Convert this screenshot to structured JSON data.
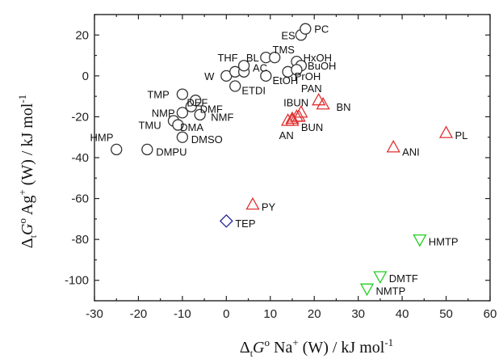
{
  "chart_data": {
    "type": "scatter",
    "title": "",
    "xlabel": {
      "delta": "Δ",
      "sub": "t",
      "G": "G",
      "sup_o": "o",
      "ion": " Na",
      "ion_sup": "+",
      "rest": " (W) / kJ mol",
      "unit_sup": "-1"
    },
    "ylabel": {
      "delta": "Δ",
      "sub": "t",
      "G": "G",
      "sup_o": "o",
      "ion": " Ag",
      "ion_sup": "+",
      "rest": " (W) / kJ mol",
      "unit_sup": "-1"
    },
    "xlim": [
      -30,
      60
    ],
    "ylim": [
      -110,
      30
    ],
    "xticks": [
      -30,
      -20,
      -10,
      0,
      10,
      20,
      30,
      40,
      50,
      60
    ],
    "yticks": [
      -100,
      -80,
      -60,
      -40,
      -20,
      0,
      20
    ],
    "grid": false,
    "colors": {
      "circle": "#333333",
      "triangle_up": "#e03030",
      "triangle_down": "#22cc22",
      "diamond": "#2a2a9a"
    },
    "series": [
      {
        "marker": "circle",
        "points": [
          {
            "x": -25,
            "y": -36
          },
          {
            "x": -18,
            "y": -36
          },
          {
            "x": -12,
            "y": -22
          },
          {
            "x": -10,
            "y": -30
          },
          {
            "x": -11,
            "y": -24
          },
          {
            "x": -10,
            "y": -18
          },
          {
            "x": -8,
            "y": -15
          },
          {
            "x": -7,
            "y": -12
          },
          {
            "x": -10,
            "y": -9
          },
          {
            "x": -6,
            "y": -19
          },
          {
            "x": 0,
            "y": 0
          },
          {
            "x": 2,
            "y": 2
          },
          {
            "x": 2,
            "y": -5
          },
          {
            "x": 4,
            "y": 2
          },
          {
            "x": 4,
            "y": 5
          },
          {
            "x": 9,
            "y": 9
          },
          {
            "x": 11,
            "y": 9
          },
          {
            "x": 9,
            "y": 0
          },
          {
            "x": 14,
            "y": 2
          },
          {
            "x": 16,
            "y": 7
          },
          {
            "x": 17,
            "y": 5
          },
          {
            "x": 16,
            "y": 3
          },
          {
            "x": 17,
            "y": 20
          },
          {
            "x": 18,
            "y": 23
          }
        ],
        "labels": [
          {
            "text": "HMP",
            "x": -31,
            "y": -30
          },
          {
            "text": "DMPU",
            "x": -16,
            "y": -37
          },
          {
            "text": "TMU",
            "x": -20,
            "y": -24
          },
          {
            "text": "DMA",
            "x": -10.5,
            "y": -25
          },
          {
            "text": "DMSO",
            "x": -8,
            "y": -31
          },
          {
            "text": "NMP",
            "x": -17,
            "y": -18
          },
          {
            "text": "DMF",
            "x": -6,
            "y": -16
          },
          {
            "text": "NMF",
            "x": -3.5,
            "y": -20
          },
          {
            "text": "DEF",
            "x": -9,
            "y": -13
          },
          {
            "text": "TMP",
            "x": -18,
            "y": -9
          },
          {
            "text": "W",
            "x": -5,
            "y": 0
          },
          {
            "text": "THF",
            "x": -2,
            "y": 9
          },
          {
            "text": "BL",
            "x": 4.5,
            "y": 9
          },
          {
            "text": "AC",
            "x": 6,
            "y": 4
          },
          {
            "text": "ETDI",
            "x": 3.5,
            "y": -7
          },
          {
            "text": "EtOH",
            "x": 10.5,
            "y": -2
          },
          {
            "text": "TMS",
            "x": 10.5,
            "y": 13
          },
          {
            "text": "ES",
            "x": 12.5,
            "y": 20
          },
          {
            "text": "PC",
            "x": 20,
            "y": 23
          },
          {
            "text": "HxOH",
            "x": 17.5,
            "y": 9
          },
          {
            "text": "BuOH",
            "x": 18.5,
            "y": 5
          },
          {
            "text": "PrOH",
            "x": 15.5,
            "y": 0
          },
          {
            "text": "PAN",
            "x": 17,
            "y": -6
          }
        ]
      },
      {
        "marker": "triangle_up",
        "points": [
          {
            "x": 14,
            "y": -22
          },
          {
            "x": 15,
            "y": -22
          },
          {
            "x": 15,
            "y": -21
          },
          {
            "x": 16,
            "y": -20
          },
          {
            "x": 16.5,
            "y": -20
          },
          {
            "x": 17,
            "y": -18
          },
          {
            "x": 21,
            "y": -12
          },
          {
            "x": 22,
            "y": -14
          },
          {
            "x": 38,
            "y": -35
          },
          {
            "x": 50,
            "y": -28
          },
          {
            "x": 6,
            "y": -63
          }
        ],
        "labels": [
          {
            "text": "IBUN",
            "x": 13,
            "y": -13
          },
          {
            "text": "BN",
            "x": 25,
            "y": -15
          },
          {
            "text": "BUN",
            "x": 17,
            "y": -25
          },
          {
            "text": "AN",
            "x": 12,
            "y": -29
          },
          {
            "text": "ANI",
            "x": 40,
            "y": -37
          },
          {
            "text": "PL",
            "x": 52,
            "y": -29
          },
          {
            "text": "PY",
            "x": 8,
            "y": -64
          }
        ]
      },
      {
        "marker": "diamond",
        "points": [
          {
            "x": 0,
            "y": -71
          }
        ],
        "labels": [
          {
            "text": "TEP",
            "x": 2,
            "y": -72
          }
        ]
      },
      {
        "marker": "triangle_down",
        "points": [
          {
            "x": 44,
            "y": -80
          },
          {
            "x": 35,
            "y": -98
          },
          {
            "x": 32,
            "y": -104
          }
        ],
        "labels": [
          {
            "text": "HMTP",
            "x": 46,
            "y": -81
          },
          {
            "text": "DMTF",
            "x": 37,
            "y": -99
          },
          {
            "text": "NMTP",
            "x": 34,
            "y": -105
          }
        ]
      }
    ]
  }
}
